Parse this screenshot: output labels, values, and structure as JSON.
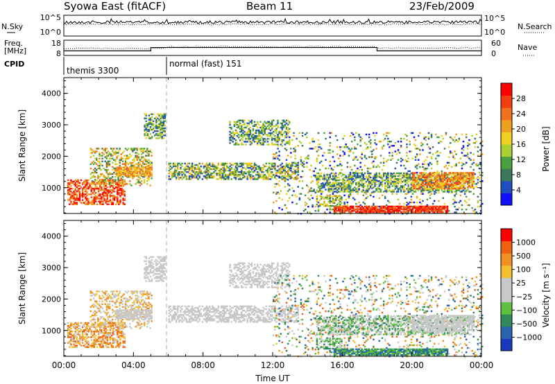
{
  "header": {
    "title": "Syowa East (fitACF)",
    "beam": "Beam 11",
    "date": "23/Feb/2009"
  },
  "top_panel": {
    "left_label": "N.Sky",
    "right_label": "N.Search",
    "left_ticks": [
      "10^5",
      "10^0"
    ],
    "right_ticks": [
      "10^5",
      "10^0"
    ]
  },
  "freq_panel": {
    "left_label_line1": "Freq.",
    "left_label_line2": "[MHz]",
    "right_label": "Nave",
    "left_ticks": [
      "18",
      "8"
    ],
    "right_ticks": [
      "60",
      "0"
    ]
  },
  "cpid": {
    "label": "CPID",
    "modes": [
      {
        "name": "themis 3300",
        "start_hour": 0
      },
      {
        "name": "normal (fast) 151",
        "start_hour": 6
      }
    ]
  },
  "chart_data": [
    {
      "type": "heatmap",
      "name": "power",
      "ylabel": "Slant Range [km]",
      "xlabel": "",
      "ylim": [
        180,
        4500
      ],
      "yticks": [
        "1000",
        "2000",
        "3000",
        "4000"
      ],
      "xlim": [
        0,
        24
      ],
      "colorbar": {
        "label": "Power [dB]",
        "ticks": [
          "4",
          "8",
          "12",
          "16",
          "20",
          "24",
          "28"
        ],
        "colors": [
          "#1010ff",
          "#2050c0",
          "#3a7a5a",
          "#4aa040",
          "#a8d030",
          "#f0d020",
          "#f0a020",
          "#f07020",
          "#f04010",
          "#ff0000"
        ]
      }
    },
    {
      "type": "heatmap",
      "name": "velocity",
      "ylabel": "Slant Range [km]",
      "xlabel": "Time UT",
      "ylim": [
        180,
        4500
      ],
      "yticks": [
        "1000",
        "2000",
        "3000",
        "4000"
      ],
      "xlim": [
        0,
        24
      ],
      "xticks": [
        "00:00",
        "04:00",
        "08:00",
        "12:00",
        "16:00",
        "20:00",
        "00:00"
      ],
      "colorbar": {
        "label": "Velocity [m s⁻¹]",
        "ticks": [
          "1000",
          "500",
          "100",
          "25",
          "−25",
          "−100",
          "−500",
          "−1000"
        ],
        "colors": [
          "#1838c0",
          "#2a64b0",
          "#2e8a5a",
          "#60c040",
          "#c8c8c8",
          "#c8c8c8",
          "#f0c030",
          "#f09020",
          "#f06010",
          "#ff0000"
        ]
      }
    }
  ]
}
